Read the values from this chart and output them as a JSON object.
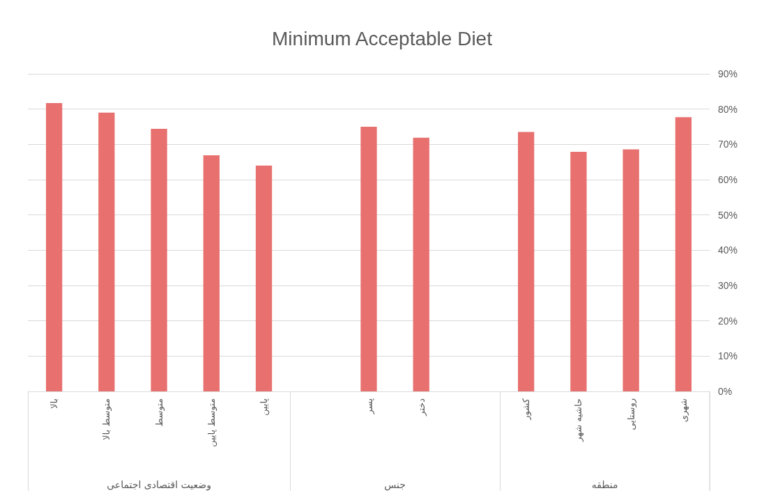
{
  "chart_data": {
    "type": "bar",
    "title": "Minimum Acceptable Diet",
    "categories": [
      "بالا",
      "متوسط بالا",
      "متوسط",
      "متوسط پایین",
      "پایین",
      null,
      "پسر",
      "دختر",
      null,
      "کشور",
      "حاشیه شهر",
      "روستایی",
      "شهری"
    ],
    "values": [
      81.7,
      79.0,
      74.4,
      66.9,
      64.0,
      null,
      75.0,
      71.9,
      null,
      73.5,
      67.9,
      68.6,
      77.7
    ],
    "color": "#e8716f",
    "ylim": [
      0,
      90
    ],
    "yticks": [
      {
        "value": 0,
        "label": "0%"
      },
      {
        "value": 10,
        "label": "10%"
      },
      {
        "value": 20,
        "label": "20%"
      },
      {
        "value": 30,
        "label": "30%"
      },
      {
        "value": 40,
        "label": "40%"
      },
      {
        "value": 50,
        "label": "50%"
      },
      {
        "value": 60,
        "label": "60%"
      },
      {
        "value": 70,
        "label": "70%"
      },
      {
        "value": 80,
        "label": "80%"
      },
      {
        "value": 90,
        "label": "90%"
      }
    ],
    "grid": "y",
    "annotations": [
      "وضعیت اقتصادی اجتماعی",
      "جنس",
      "منطقه"
    ]
  }
}
